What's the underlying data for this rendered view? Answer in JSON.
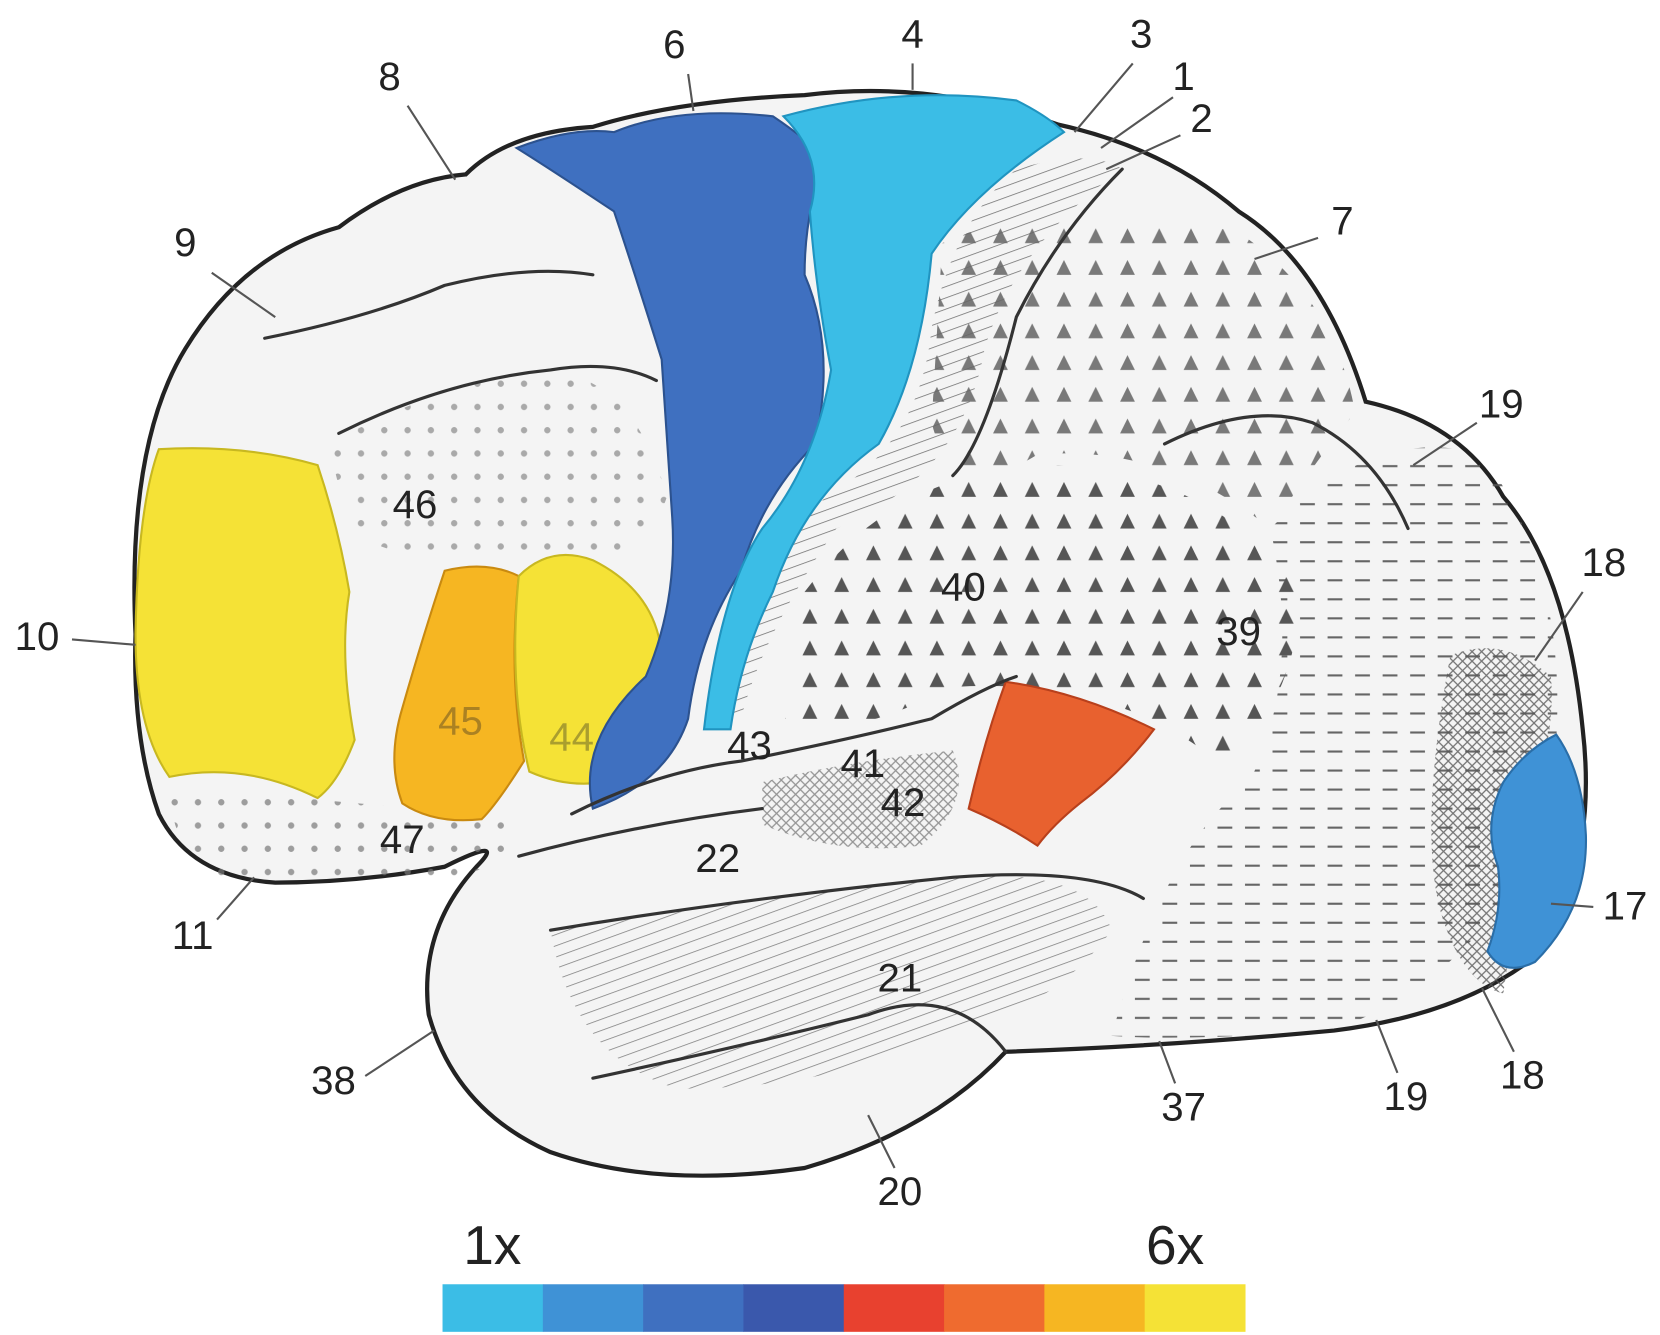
{
  "areas": [
    {
      "label": "6"
    },
    {
      "label": "4"
    },
    {
      "label": "3"
    },
    {
      "label": "1"
    },
    {
      "label": "2"
    },
    {
      "label": "8"
    },
    {
      "label": "9"
    },
    {
      "label": "7"
    },
    {
      "label": "19"
    },
    {
      "label": "46"
    },
    {
      "label": "18"
    },
    {
      "label": "10"
    },
    {
      "label": "40"
    },
    {
      "label": "39"
    },
    {
      "label": "43"
    },
    {
      "label": "41"
    },
    {
      "label": "42"
    },
    {
      "label": "45"
    },
    {
      "label": "44"
    },
    {
      "label": "22"
    },
    {
      "label": "47"
    },
    {
      "label": "17"
    },
    {
      "label": "11"
    },
    {
      "label": "21"
    },
    {
      "label": "38"
    },
    {
      "label": "37"
    },
    {
      "label": "19"
    },
    {
      "label": "18"
    },
    {
      "label": "20"
    }
  ],
  "scale": {
    "min_label": "1x",
    "max_label": "6x",
    "colors": [
      "#3bbde6",
      "#3f92d6",
      "#3f70c0",
      "#3a58ac",
      "#e8412f",
      "#ef6b2f",
      "#f6b622",
      "#f5e236"
    ]
  }
}
